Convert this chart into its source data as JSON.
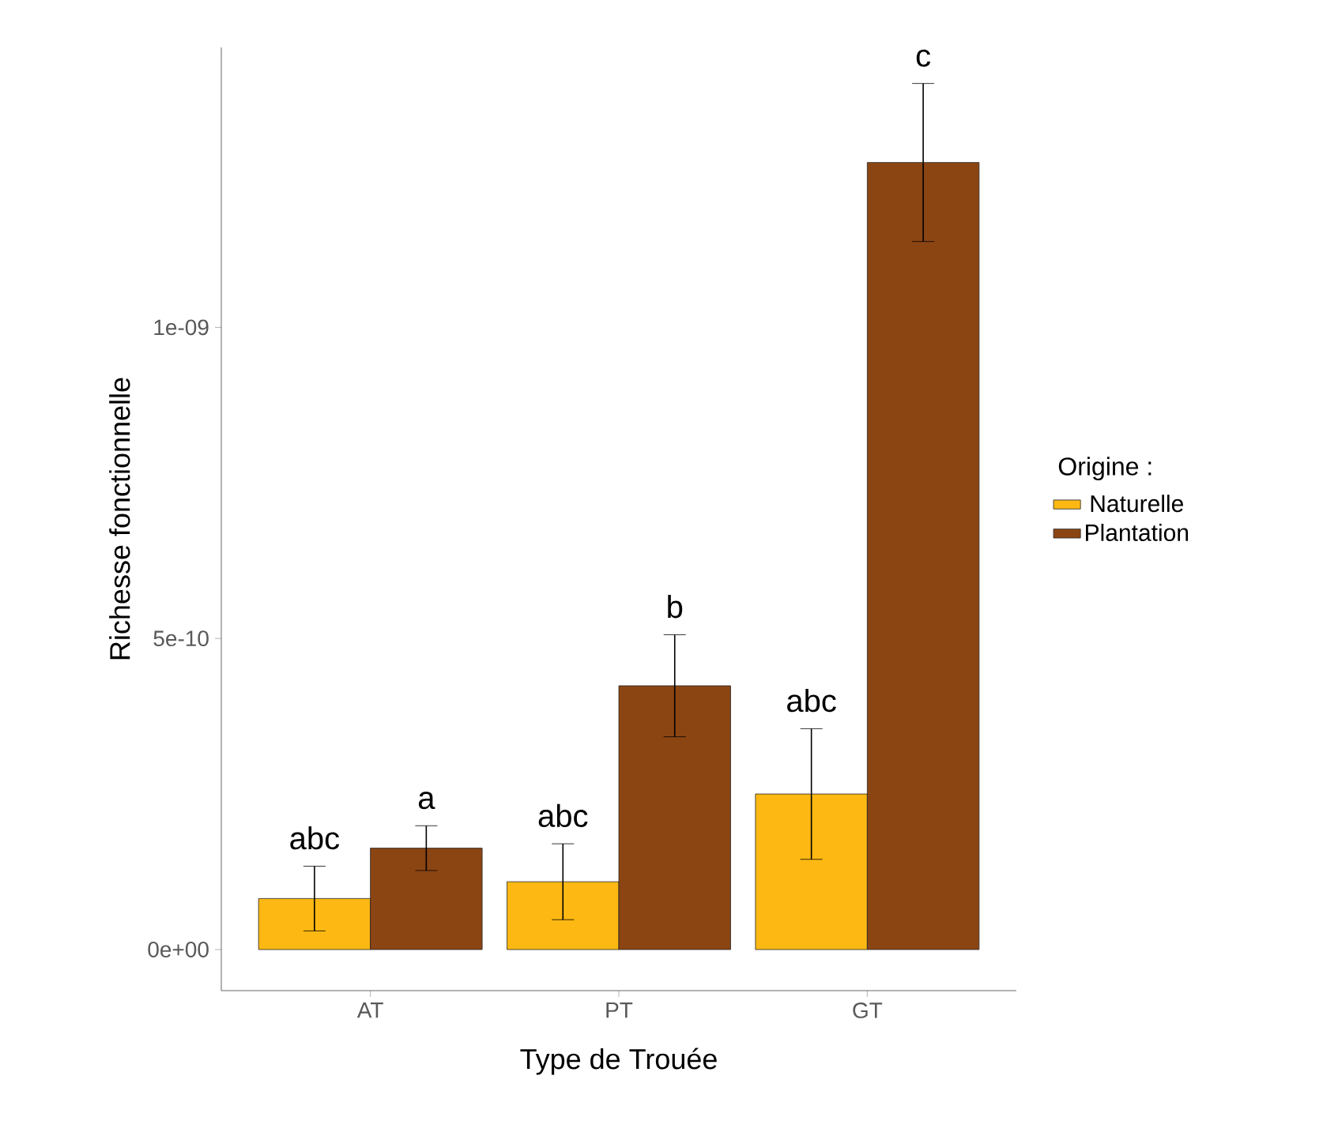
{
  "chart_data": {
    "type": "bar",
    "xlabel": "Type de Trouée",
    "ylabel": "Richesse fonctionnelle",
    "legend_title": "Origine :",
    "legend": "right",
    "grid": false,
    "categories": [
      "AT",
      "PT",
      "GT"
    ],
    "ylim": [
      -6.6e-11,
      1.45e-09
    ],
    "yticks": [
      {
        "value": 0,
        "label": "0e+00"
      },
      {
        "value": 5e-10,
        "label": "5e-10"
      },
      {
        "value": 1e-09,
        "label": "1e-09"
      }
    ],
    "series": [
      {
        "name": "Naturelle",
        "color": "#fdb813",
        "values": [
          8.2e-11,
          1.09e-10,
          2.5e-10
        ],
        "errors": [
          5.2e-11,
          6.1e-11,
          1.05e-10
        ],
        "value_labels": [
          "abc",
          "abc",
          "abc"
        ]
      },
      {
        "name": "Plantation",
        "color": "#8b4513",
        "values": [
          1.63e-10,
          4.24e-10,
          1.265e-09
        ],
        "errors": [
          3.6e-11,
          8.2e-11,
          1.27e-10
        ],
        "value_labels": [
          "a",
          "b",
          "c"
        ]
      }
    ]
  }
}
